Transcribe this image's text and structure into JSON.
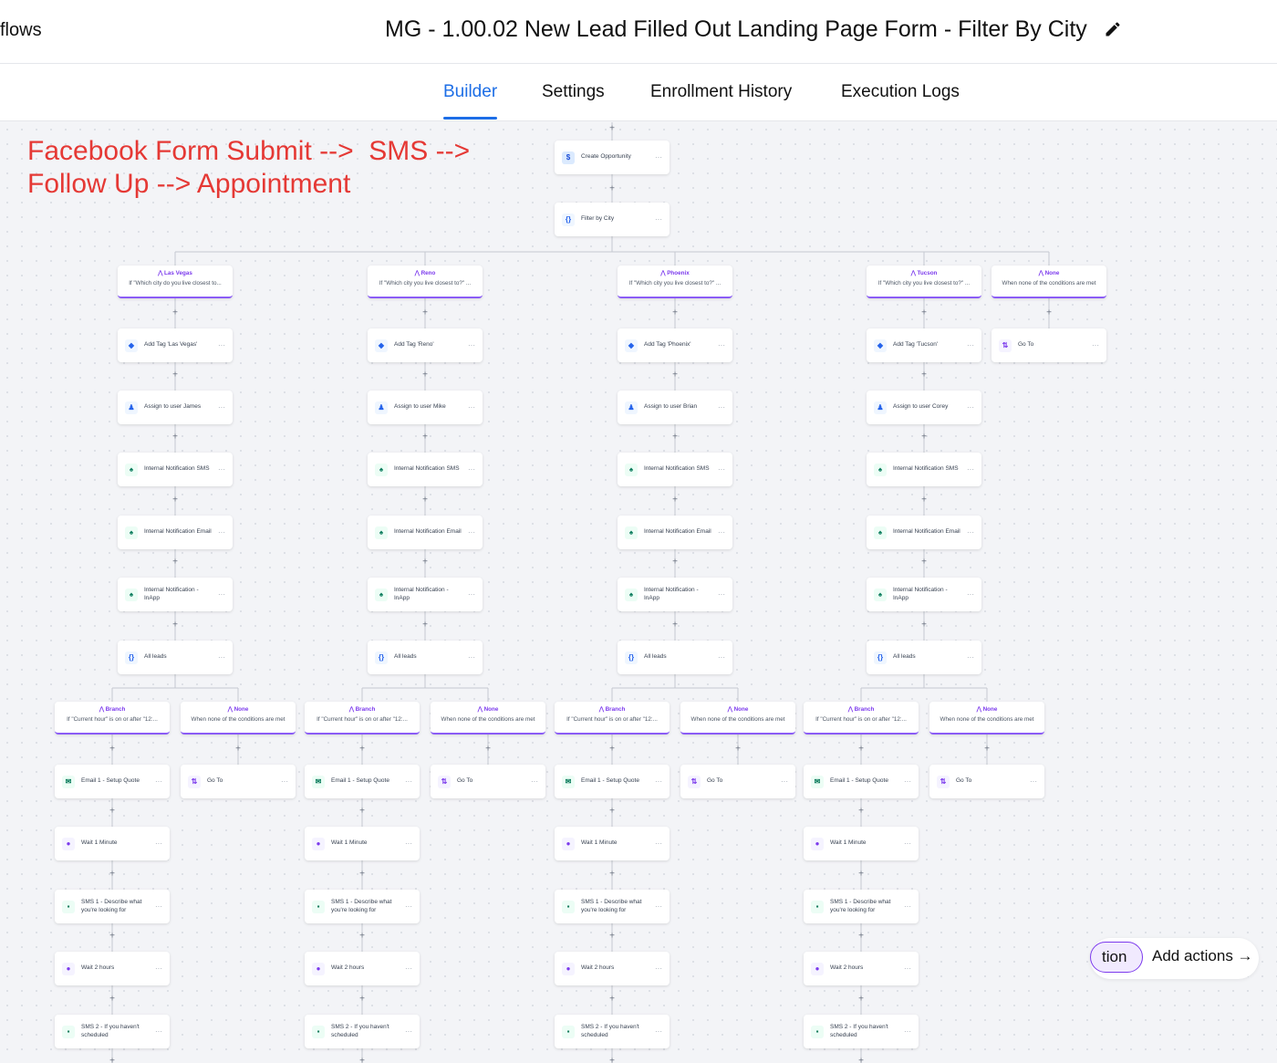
{
  "header": {
    "breadcrumb": "flows",
    "title": "MG - 1.00.02 New Lead Filled Out Landing Page Form - Filter By City",
    "edit_icon": "pencil-icon"
  },
  "tabs": [
    {
      "label": "Builder",
      "active": true
    },
    {
      "label": "Settings"
    },
    {
      "label": "Enrollment History"
    },
    {
      "label": "Execution Logs"
    }
  ],
  "colors": {
    "accent": "#1d6ee6",
    "branch": "#7c3aed",
    "overlay": "#e53935"
  },
  "top_steps": [
    {
      "label": "Create Opportunity",
      "icon": "dollar-icon"
    },
    {
      "label": "Filter by City",
      "icon": "braces-icon"
    }
  ],
  "overlay_text": "Facebook Form Submit -->  SMS --> Follow Up --> Appointment",
  "city_branches": [
    {
      "title": "Las Vegas",
      "condition": "If \"Which city do you live closest to...",
      "steps": [
        {
          "label": "Add Tag 'Las Vegas'",
          "icon": "tag-icon"
        },
        {
          "label": "Assign to user James",
          "icon": "user-icon"
        },
        {
          "label": "Internal Notification SMS",
          "icon": "bell-icon"
        },
        {
          "label": "Internal Notification Email",
          "icon": "bell-icon"
        },
        {
          "label": "Internal Notification - InApp",
          "icon": "bell-icon"
        },
        {
          "label": "All leads",
          "icon": "braces-icon"
        }
      ]
    },
    {
      "title": "Reno",
      "condition": "If \"Which city you live closest to?\" ...",
      "steps": [
        {
          "label": "Add Tag 'Reno'",
          "icon": "tag-icon"
        },
        {
          "label": "Assign to user Mike",
          "icon": "user-icon"
        },
        {
          "label": "Internal Notification SMS",
          "icon": "bell-icon"
        },
        {
          "label": "Internal Notification Email",
          "icon": "bell-icon"
        },
        {
          "label": "Internal Notification - InApp",
          "icon": "bell-icon"
        },
        {
          "label": "All leads",
          "icon": "braces-icon"
        }
      ]
    },
    {
      "title": "Phoenix",
      "condition": "If \"Which city you live closest to?\" ...",
      "steps": [
        {
          "label": "Add Tag 'Phoenix'",
          "icon": "tag-icon"
        },
        {
          "label": "Assign to user Brian",
          "icon": "user-icon"
        },
        {
          "label": "Internal Notification SMS",
          "icon": "bell-icon"
        },
        {
          "label": "Internal Notification Email",
          "icon": "bell-icon"
        },
        {
          "label": "Internal Notification - InApp",
          "icon": "bell-icon"
        },
        {
          "label": "All leads",
          "icon": "braces-icon"
        }
      ]
    },
    {
      "title": "Tucson",
      "condition": "If \"Which city you live closest to?\" ...",
      "steps": [
        {
          "label": "Add Tag 'Tucson'",
          "icon": "tag-icon"
        },
        {
          "label": "Assign to user Corey",
          "icon": "user-icon"
        },
        {
          "label": "Internal Notification SMS",
          "icon": "bell-icon"
        },
        {
          "label": "Internal Notification Email",
          "icon": "bell-icon"
        },
        {
          "label": "Internal Notification - InApp",
          "icon": "bell-icon"
        },
        {
          "label": "All leads",
          "icon": "braces-icon"
        }
      ]
    },
    {
      "title": "None",
      "condition": "When none of the conditions are met",
      "steps": [
        {
          "label": "Go To",
          "icon": "goto-icon"
        }
      ]
    }
  ],
  "time_branch": {
    "title": "Branch",
    "condition": "If \"Current hour\" is on or after \"12:...",
    "steps": [
      {
        "label": "Email 1 - Setup Quote",
        "icon": "email-icon"
      },
      {
        "label": "Wait 1 Minute",
        "icon": "clock-icon"
      },
      {
        "label": "SMS 1 - Describe what you're looking for",
        "icon": "sms-icon"
      },
      {
        "label": "Wait 2 hours",
        "icon": "clock-icon"
      },
      {
        "label": "SMS 2 - If you haven't scheduled",
        "icon": "sms-icon"
      }
    ]
  },
  "time_none": {
    "title": "None",
    "condition": "When none of the conditions are met",
    "steps": [
      {
        "label": "Go To",
        "icon": "goto-icon"
      }
    ]
  },
  "more_label": "···",
  "plus_label": "+",
  "bottom_pill": {
    "left_label": "tion",
    "add_actions": "Add actions →"
  }
}
